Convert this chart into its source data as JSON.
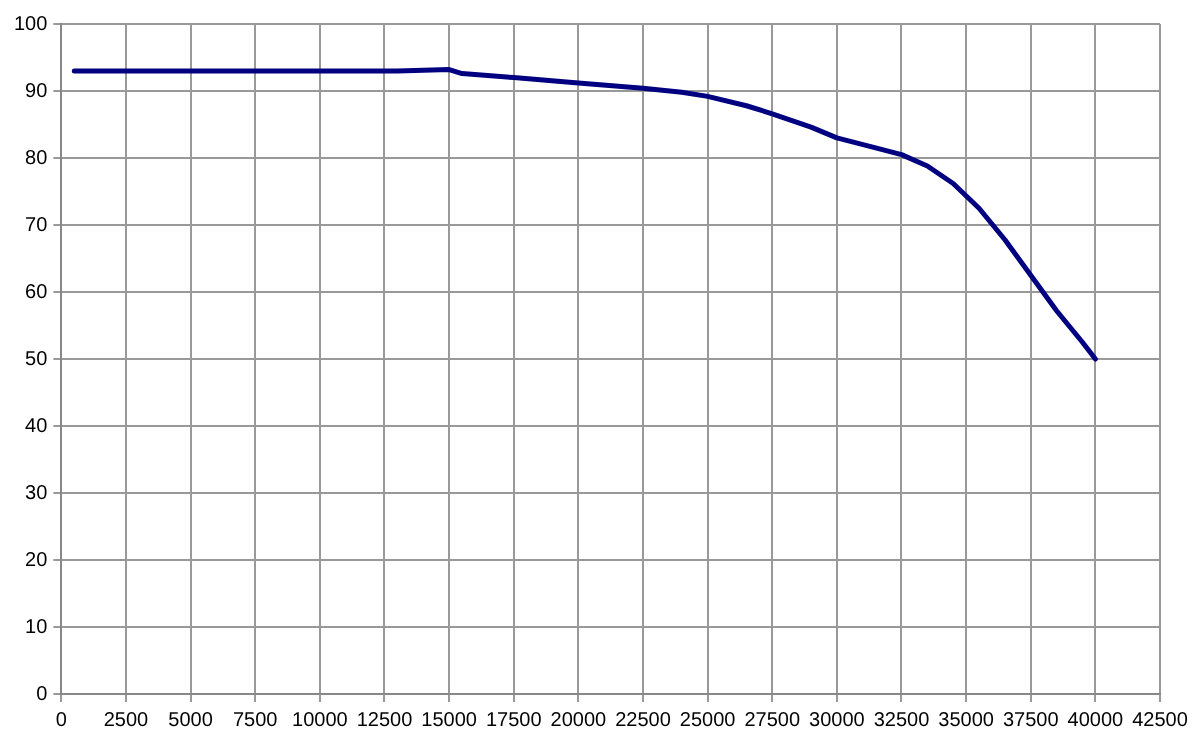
{
  "chart_data": {
    "type": "line",
    "x": [
      500,
      5000,
      10000,
      13000,
      15000,
      15500,
      17500,
      20000,
      22500,
      24000,
      25000,
      26500,
      27500,
      29000,
      30000,
      31500,
      32500,
      33500,
      34500,
      35500,
      36500,
      37500,
      38500,
      39500,
      40000
    ],
    "series": [
      {
        "color": "#000080",
        "values": [
          93,
          93,
          93,
          93,
          93.2,
          92.6,
          92,
          91.2,
          90.4,
          89.8,
          89.2,
          87.8,
          86.6,
          84.6,
          83,
          81.5,
          80.5,
          78.8,
          76.2,
          72.5,
          67.8,
          62.5,
          57.2,
          52.5,
          50
        ]
      }
    ],
    "xlim": [
      0,
      42500
    ],
    "xticks": [
      0,
      2500,
      5000,
      7500,
      10000,
      12500,
      15000,
      17500,
      20000,
      22500,
      25000,
      27500,
      30000,
      32500,
      35000,
      37500,
      40000,
      42500
    ],
    "ylim": [
      0,
      100
    ],
    "yticks": [
      0,
      10,
      20,
      30,
      40,
      50,
      60,
      70,
      80,
      90,
      100
    ],
    "grid": true,
    "legend": false,
    "marker": "none",
    "line_style": "solid"
  }
}
